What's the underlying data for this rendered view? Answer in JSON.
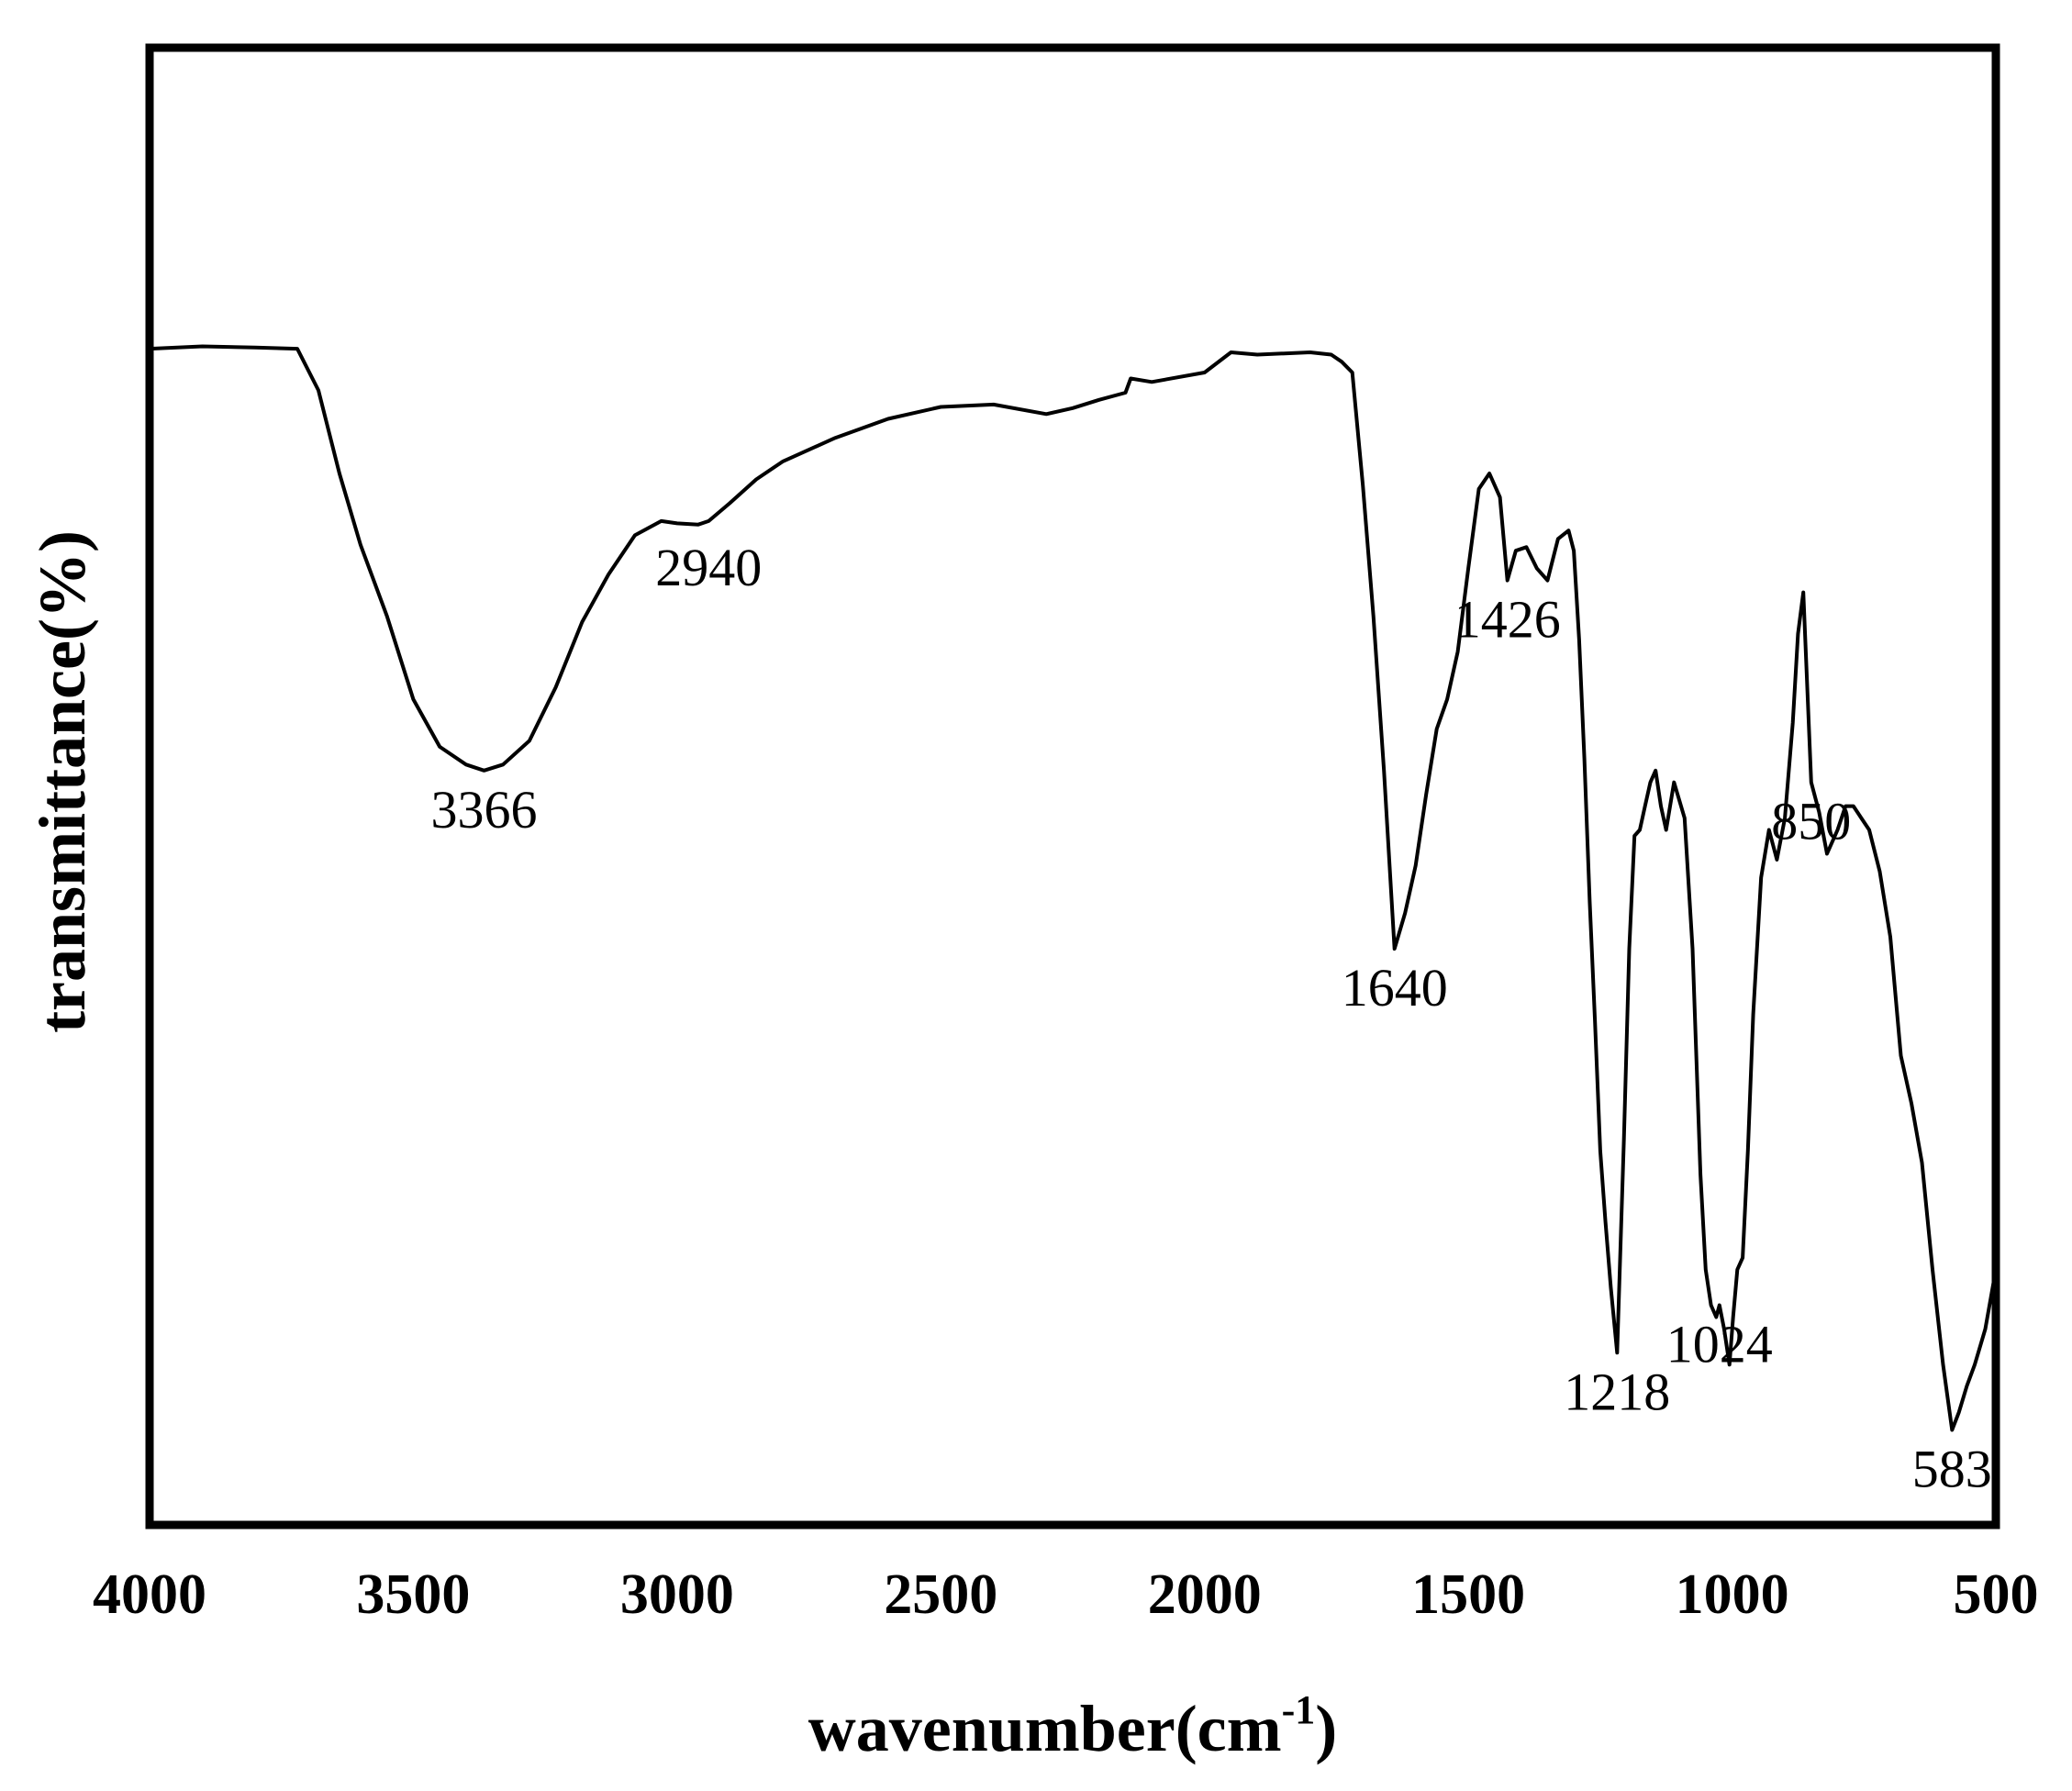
{
  "chart_data": {
    "type": "line",
    "title": "",
    "xlabel": "wavenumber(cm",
    "xlabel_sup": "-1",
    "xlabel_close": ")",
    "ylabel": "transmittance(%)",
    "xlim": [
      4000,
      500
    ],
    "x_reversed": true,
    "ylim": [
      0,
      100
    ],
    "y_ticks_shown": false,
    "grid": false,
    "legend": "none",
    "x_ticks": [
      4000,
      3500,
      3000,
      2500,
      2000,
      1500,
      1000,
      500
    ],
    "x_tick_labels": [
      "4000",
      "3500",
      "3000",
      "2500",
      "2000",
      "1500",
      "1000",
      "500"
    ],
    "line_color": "#000000",
    "series": [
      {
        "x": [
          4000,
          3900,
          3800,
          3720,
          3680,
          3640,
          3600,
          3550,
          3500,
          3450,
          3400,
          3366,
          3330,
          3280,
          3230,
          3180,
          3130,
          3080,
          3030,
          3000,
          2960,
          2940,
          2900,
          2850,
          2800,
          2700,
          2600,
          2500,
          2400,
          2300,
          2250,
          2200,
          2150,
          2140,
          2100,
          2000,
          1950,
          1900,
          1800,
          1760,
          1740,
          1720,
          1700,
          1680,
          1660,
          1640,
          1620,
          1600,
          1580,
          1560,
          1540,
          1520,
          1500,
          1480,
          1460,
          1440,
          1426,
          1410,
          1390,
          1370,
          1350,
          1330,
          1310,
          1300,
          1290,
          1280,
          1270,
          1260,
          1250,
          1240,
          1230,
          1218,
          1205,
          1195,
          1185,
          1175,
          1165,
          1155,
          1145,
          1135,
          1125,
          1110,
          1090,
          1075,
          1060,
          1050,
          1040,
          1030,
          1024,
          1015,
          1005,
          998,
          990,
          980,
          970,
          960,
          945,
          930,
          915,
          900,
          885,
          875,
          865,
          850,
          835,
          820,
          800,
          785,
          770,
          755,
          740,
          720,
          700,
          680,
          660,
          640,
          620,
          600,
          583,
          570,
          555,
          540,
          520,
          500
        ],
        "y": [
          91.5,
          91.7,
          91.6,
          91.5,
          88,
          81,
          75,
          69,
          62,
          58,
          56.5,
          56,
          56.5,
          58.5,
          63,
          68.5,
          72.5,
          75.8,
          77,
          76.8,
          76.7,
          77,
          78.5,
          80.5,
          82,
          84,
          85.6,
          86.6,
          86.8,
          86,
          86.5,
          87.2,
          87.8,
          89,
          88.7,
          89.5,
          91.2,
          91,
          91.2,
          91,
          90.4,
          89.5,
          80,
          69,
          56,
          41,
          44,
          48,
          54,
          59.5,
          62,
          66,
          73,
          79.7,
          81,
          79,
          72,
          74.5,
          74.8,
          73,
          72,
          75.5,
          76.2,
          74.5,
          67,
          57,
          45,
          35,
          24,
          18,
          12.5,
          7,
          25,
          41,
          50.5,
          51,
          53,
          55,
          56,
          53,
          51,
          55,
          52,
          41,
          22,
          14,
          11,
          10,
          11,
          9,
          6,
          10,
          14,
          15,
          24,
          35.5,
          47,
          51,
          48.5,
          52,
          60,
          67.5,
          71,
          55,
          52.5,
          49,
          51,
          53,
          53,
          52,
          51,
          47.5,
          42,
          32,
          28,
          23,
          14,
          6,
          0.5,
          2,
          4.2,
          6,
          9,
          14
        ]
      }
    ],
    "annotations": [
      {
        "x": 3366,
        "text": "3366"
      },
      {
        "x": 2940,
        "text": "2940"
      },
      {
        "x": 1640,
        "text": "1640"
      },
      {
        "x": 1426,
        "text": "1426"
      },
      {
        "x": 1218,
        "text": "1218"
      },
      {
        "x": 1024,
        "text": "1024"
      },
      {
        "x": 850,
        "text": "850"
      },
      {
        "x": 583,
        "text": "583"
      }
    ]
  }
}
